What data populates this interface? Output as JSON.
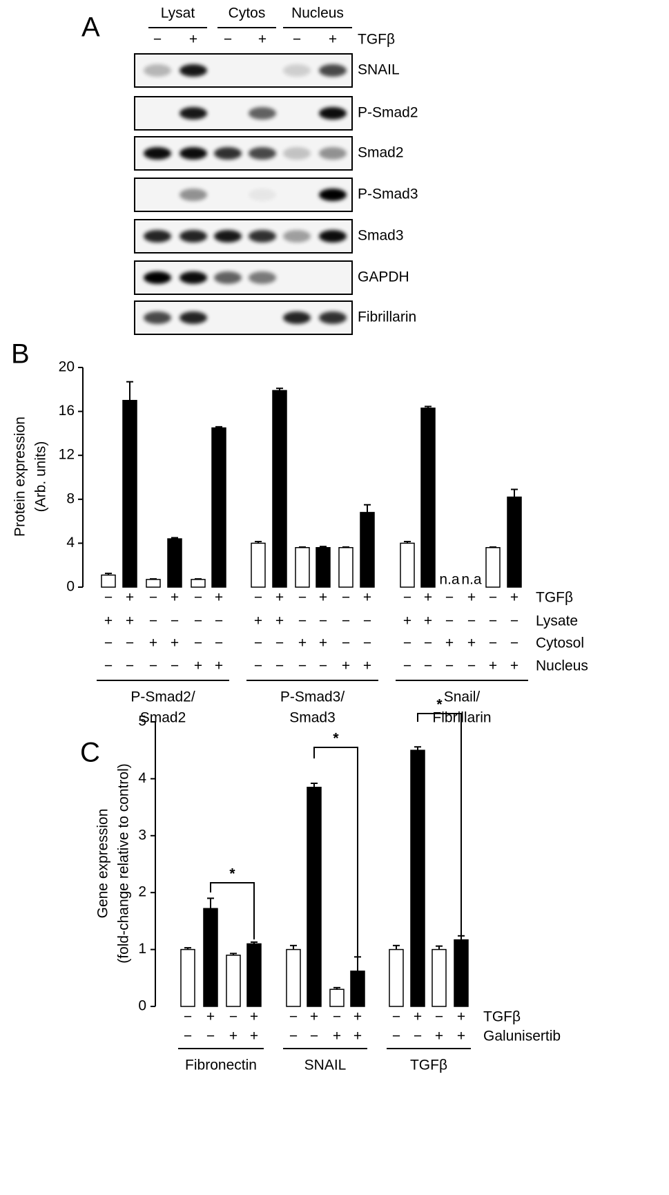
{
  "panels": {
    "a": "A",
    "b": "B",
    "c": "C"
  },
  "blot": {
    "lanes": [
      "Lysat",
      "Cytos",
      "Nucleus"
    ],
    "treatment": {
      "name": "TGFβ",
      "signs": [
        "−",
        "+",
        "−",
        "+",
        "−",
        "+"
      ]
    },
    "proteins": [
      "SNAIL",
      "P-Smad2",
      "Smad2",
      "P-Smad3",
      "Smad3",
      "GAPDH",
      "Fibrillarin"
    ]
  },
  "chart_data": [
    {
      "type": "bar",
      "ylabel": [
        "Protein expression",
        "(Arb. units)"
      ],
      "ylim": [
        0,
        20
      ],
      "yticks": [
        0,
        4,
        8,
        12,
        16,
        20
      ],
      "values": [
        1.1,
        17.0,
        0.7,
        4.4,
        0.7,
        14.5,
        4.0,
        17.9,
        3.6,
        3.6,
        3.6,
        6.8,
        4.0,
        16.3,
        null,
        null,
        3.6,
        8.2
      ],
      "errors": [
        0.15,
        1.7,
        0.05,
        0.1,
        0.05,
        0.1,
        0.15,
        0.2,
        0.05,
        0.1,
        0.05,
        0.7,
        0.15,
        0.15,
        null,
        null,
        0.05,
        0.7
      ],
      "value_labels": [
        null,
        null,
        null,
        null,
        null,
        null,
        null,
        null,
        null,
        null,
        null,
        null,
        null,
        null,
        "n.a",
        "n.a",
        null,
        null
      ],
      "colors": [
        "#ffffff",
        "#000000",
        "#ffffff",
        "#000000",
        "#ffffff",
        "#000000",
        "#ffffff",
        "#000000",
        "#ffffff",
        "#000000",
        "#ffffff",
        "#000000",
        "#ffffff",
        "#000000",
        "#ffffff",
        "#000000",
        "#ffffff",
        "#000000"
      ],
      "conditions": [
        {
          "name": "TGFβ",
          "signs": [
            "−",
            "+",
            "−",
            "+",
            "−",
            "+",
            "−",
            "+",
            "−",
            "+",
            "−",
            "+",
            "−",
            "+",
            "−",
            "+",
            "−",
            "+"
          ]
        },
        {
          "name": "Lysate",
          "signs": [
            "+",
            "+",
            "−",
            "−",
            "−",
            "−",
            "+",
            "+",
            "−",
            "−",
            "−",
            "−",
            "+",
            "+",
            "−",
            "−",
            "−",
            "−"
          ]
        },
        {
          "name": "Cytosol",
          "signs": [
            "−",
            "−",
            "+",
            "+",
            "−",
            "−",
            "−",
            "−",
            "+",
            "+",
            "−",
            "−",
            "−",
            "−",
            "+",
            "+",
            "−",
            "−"
          ]
        },
        {
          "name": "Nucleus",
          "signs": [
            "−",
            "−",
            "−",
            "−",
            "+",
            "+",
            "−",
            "−",
            "−",
            "−",
            "+",
            "+",
            "−",
            "−",
            "−",
            "−",
            "+",
            "+"
          ]
        }
      ],
      "groups": [
        [
          "P-Smad2/",
          "Smad2"
        ],
        [
          "P-Smad3/",
          "Smad3"
        ],
        [
          "Snail/",
          "Fibrillarin"
        ]
      ]
    },
    {
      "type": "bar",
      "ylabel": [
        "Gene expression",
        "(fold-change relative to control)"
      ],
      "ylim": [
        0,
        5
      ],
      "yticks": [
        0,
        1,
        2,
        3,
        4,
        5
      ],
      "values": [
        1.0,
        1.72,
        0.9,
        1.1,
        1.0,
        3.85,
        0.3,
        0.62,
        1.0,
        4.5,
        1.0,
        1.17
      ],
      "errors": [
        0.03,
        0.18,
        0.03,
        0.03,
        0.07,
        0.07,
        0.03,
        0.25,
        0.07,
        0.06,
        0.06,
        0.07
      ],
      "colors": [
        "#ffffff",
        "#000000",
        "#ffffff",
        "#000000",
        "#ffffff",
        "#000000",
        "#ffffff",
        "#000000",
        "#ffffff",
        "#000000",
        "#ffffff",
        "#000000"
      ],
      "conditions": [
        {
          "name": "TGFβ",
          "signs": [
            "−",
            "+",
            "−",
            "+",
            "−",
            "+",
            "−",
            "+",
            "−",
            "+",
            "−",
            "+"
          ]
        },
        {
          "name": "Galunisertib",
          "signs": [
            "−",
            "−",
            "+",
            "+",
            "−",
            "−",
            "+",
            "+",
            "−",
            "−",
            "+",
            "+"
          ]
        }
      ],
      "groups": [
        [
          "Fibronectin"
        ],
        [
          "SNAIL"
        ],
        [
          "TGFβ"
        ]
      ],
      "annotations": [
        "*",
        "*",
        "*"
      ]
    }
  ]
}
